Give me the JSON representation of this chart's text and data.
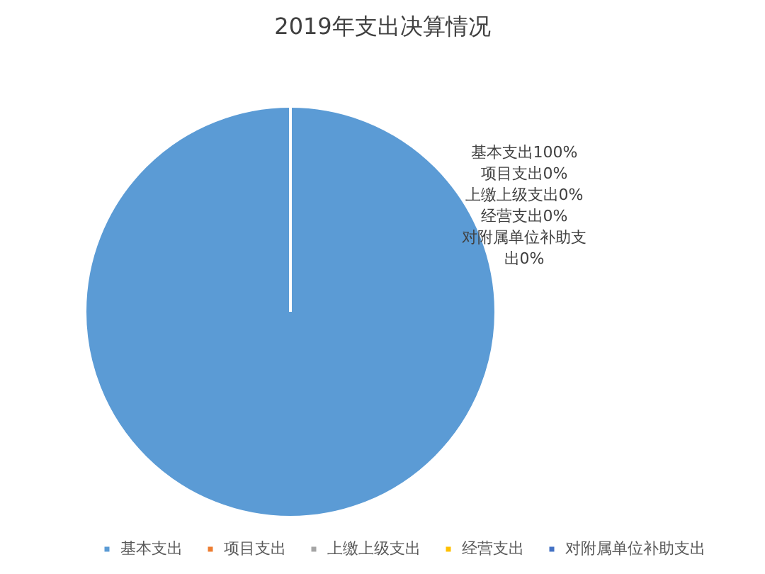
{
  "chart_data": {
    "type": "pie",
    "title": "2019年支出决算情况",
    "categories": [
      "基本支出",
      "项目支出",
      "上缴上级支出",
      "经营支出",
      "对附属单位补助支出"
    ],
    "values": [
      100,
      0,
      0,
      0,
      0
    ],
    "colors": [
      "#5b9bd5",
      "#ed7d31",
      "#a5a5a5",
      "#ffc000",
      "#4472c4"
    ],
    "value_labels": [
      "基本支出100%",
      "项目支出0%",
      "上缴上级支出0%",
      "经营支出0%",
      "对附属单位补助支出0%"
    ],
    "legend": "bottom"
  }
}
